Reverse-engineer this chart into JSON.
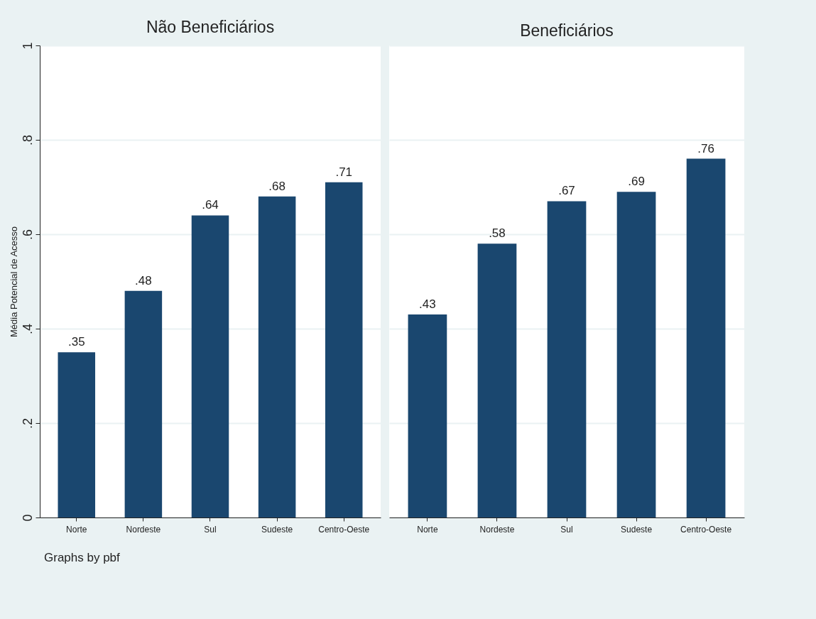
{
  "chart_data": [
    {
      "type": "bar",
      "title": "Não Beneficiários",
      "ylabel": "Média Potencial de Acesso",
      "categories": [
        "Norte",
        "Nordeste",
        "Sul",
        "Sudeste",
        "Centro-Oeste"
      ],
      "values": [
        0.35,
        0.48,
        0.64,
        0.68,
        0.71
      ],
      "value_labels": [
        ".35",
        ".48",
        ".64",
        ".68",
        ".71"
      ],
      "color": "#1a476f",
      "ylim": [
        0,
        1
      ],
      "yticks": [
        0,
        {
          "value": 0.2,
          "label": ".2"
        },
        {
          "value": 0.4,
          "label": ".4"
        },
        {
          "value": 0.6,
          "label": ".6"
        },
        {
          "value": 0.8,
          "label": ".8"
        },
        1
      ],
      "grid": "y",
      "annotations": [
        "Graphs by pbf"
      ]
    },
    {
      "type": "bar",
      "title": "Beneficiários",
      "categories": [
        "Norte",
        "Nordeste",
        "Sul",
        "Sudeste",
        "Centro-Oeste"
      ],
      "values": [
        0.43,
        0.58,
        0.67,
        0.69,
        0.76
      ],
      "value_labels": [
        ".43",
        ".58",
        ".67",
        ".69",
        ".76"
      ],
      "color": "#1a476f",
      "ylim": [
        0,
        1
      ],
      "yticks": [
        0,
        0.2,
        0.4,
        0.6,
        0.8,
        1
      ],
      "grid": "y",
      "tick_labels": "x"
    }
  ]
}
